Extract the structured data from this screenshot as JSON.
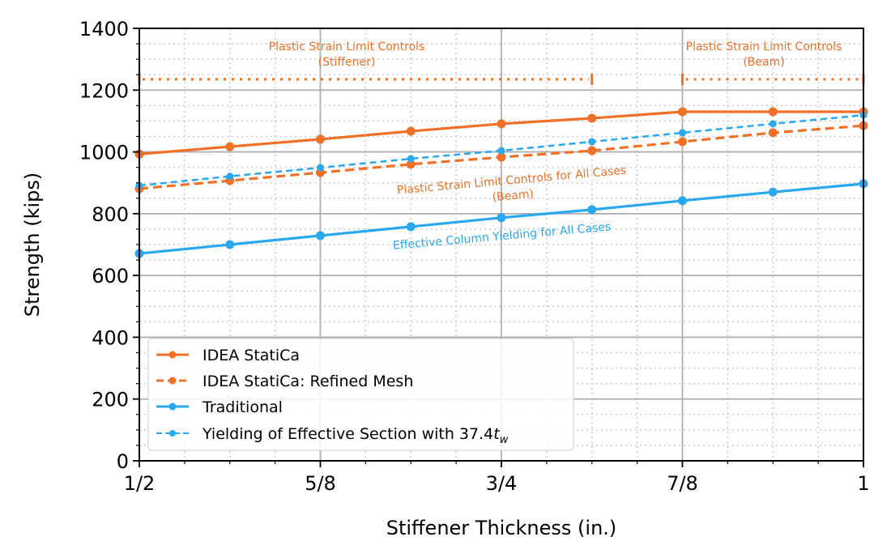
{
  "chart_data": {
    "type": "line",
    "xlabel": "Stiffener Thickness (in.)",
    "ylabel": "Strength (kips)",
    "xlim": [
      0.5,
      1.0
    ],
    "ylim": [
      0,
      1400
    ],
    "xticks": [
      0.5,
      0.625,
      0.75,
      0.875,
      1.0
    ],
    "xtick_labels": [
      "1/2",
      "5/8",
      "3/4",
      "7/8",
      "1"
    ],
    "yticks": [
      0,
      200,
      400,
      600,
      800,
      1000,
      1200,
      1400
    ],
    "ytick_labels": [
      "0",
      "200",
      "400",
      "600",
      "800",
      "1000",
      "1200",
      "1400"
    ],
    "grid": true,
    "legend_position": "lower-left",
    "x": [
      0.5,
      0.5625,
      0.625,
      0.6875,
      0.75,
      0.8125,
      0.875,
      0.9375,
      1.0
    ],
    "series": [
      {
        "name": "IDEA StatiCa",
        "color": "#f07028",
        "style": "solid",
        "values": [
          993,
          1017,
          1041,
          1067,
          1091,
          1109,
          1130,
          1130,
          1130
        ]
      },
      {
        "name": "IDEA StatiCa: Refined Mesh",
        "color": "#f07028",
        "style": "dashed",
        "values": [
          881,
          907,
          933,
          960,
          983,
          1004,
          1033,
          1062,
          1085
        ]
      },
      {
        "name": "Traditional",
        "color": "#29a8ee",
        "style": "solid",
        "values": [
          671,
          700,
          729,
          758,
          787,
          813,
          842,
          870,
          897
        ]
      },
      {
        "name_prefix": "Yielding of Effective Section with 37.4",
        "name_var": "t",
        "name_sub": "w",
        "color": "#29a8ee",
        "style": "dashed",
        "values": [
          891,
          921,
          949,
          978,
          1004,
          1033,
          1062,
          1091,
          1119
        ]
      }
    ],
    "annotations": [
      {
        "lines": [
          "Plastic Strain Limit Controls",
          "(Stiffener)"
        ],
        "color": "#f07028",
        "range": [
          0.5,
          0.8125
        ],
        "y": 1235
      },
      {
        "lines": [
          "Plastic Strain Limit Controls",
          "(Beam)"
        ],
        "color": "#f07028",
        "range": [
          0.875,
          1.0
        ],
        "y": 1235
      },
      {
        "lines": [
          "Plastic Strain Limit Controls for All Cases",
          "(Beam)"
        ],
        "color": "#f07028"
      },
      {
        "lines": [
          "Effective Column Yielding for All Cases"
        ],
        "color": "#29a8ee"
      }
    ]
  }
}
